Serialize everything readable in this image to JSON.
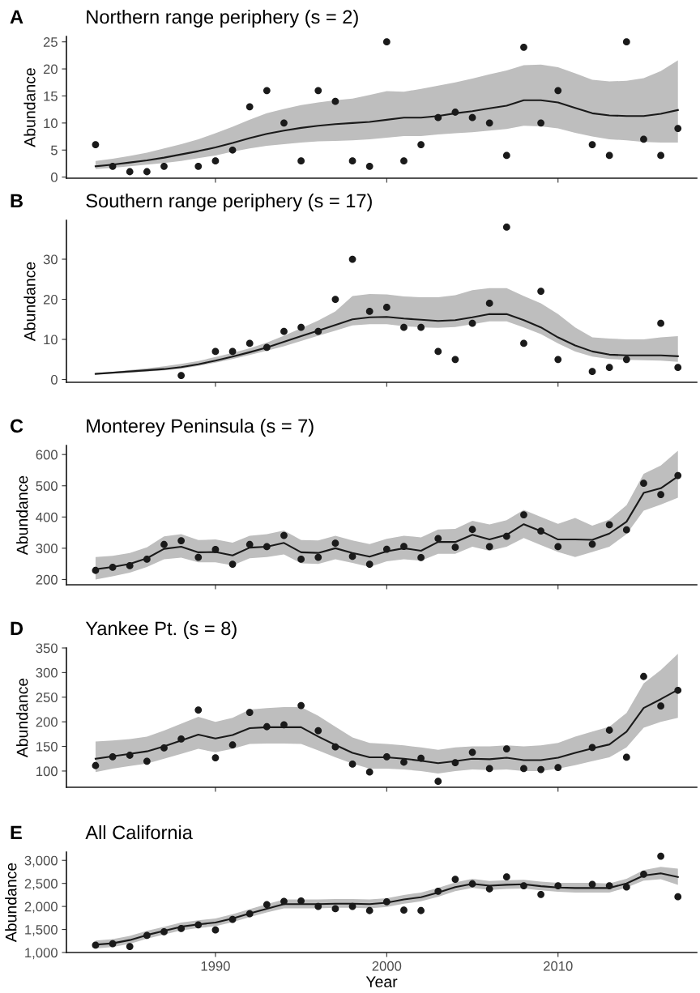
{
  "chart_data": [
    {
      "type": "scatter",
      "title": "Northern range periphery (s = 2)",
      "ylabel": "Abundance",
      "annotations": [
        "A"
      ],
      "marker": "circle",
      "tick_labels": "y",
      "xlim": [
        1981.3,
        2018.1
      ],
      "xticks": [
        {
          "value": 1990,
          "label": null
        },
        {
          "value": 2000,
          "label": null
        },
        {
          "value": 2010,
          "label": null
        }
      ],
      "ylim": [
        -0.2,
        26
      ],
      "yticks": [
        0,
        5,
        10,
        15,
        20,
        25
      ],
      "series": [
        {
          "type": "line",
          "color": "#1a1a1a",
          "marker": "none",
          "x": [
            1983,
            1984,
            1985,
            1986,
            1987,
            1988,
            1989,
            1990,
            1991,
            1992,
            1993,
            1994,
            1995,
            1996,
            1997,
            1998,
            1999,
            2000,
            2001,
            2002,
            2003,
            2004,
            2005,
            2006,
            2007,
            2008,
            2009,
            2010,
            2011,
            2012,
            2013,
            2014,
            2015,
            2016,
            2017
          ],
          "values": [
            2.0,
            2.3,
            2.7,
            3.1,
            3.6,
            4.2,
            4.8,
            5.5,
            6.3,
            7.2,
            8.0,
            8.6,
            9.1,
            9.5,
            9.8,
            10.0,
            10.2,
            10.6,
            11.0,
            11.0,
            11.3,
            11.8,
            12.2,
            12.7,
            13.2,
            14.2,
            14.2,
            13.8,
            12.8,
            11.8,
            11.4,
            11.3,
            11.3,
            11.7,
            12.4
          ],
          "lower": [
            1.5,
            1.7,
            2.0,
            2.3,
            2.6,
            3.0,
            3.5,
            4.0,
            4.7,
            5.3,
            5.8,
            6.1,
            6.4,
            6.6,
            6.7,
            6.8,
            7.0,
            7.3,
            7.6,
            7.6,
            7.9,
            8.1,
            8.3,
            8.6,
            8.9,
            9.5,
            9.4,
            9.0,
            8.2,
            7.5,
            7.0,
            6.8,
            6.5,
            6.4,
            6.4
          ],
          "upper": [
            3.0,
            3.4,
            3.9,
            4.5,
            5.3,
            6.1,
            7.0,
            8.1,
            9.3,
            10.6,
            11.8,
            12.6,
            13.3,
            13.8,
            14.2,
            14.5,
            15.2,
            15.9,
            15.8,
            16.3,
            16.9,
            17.5,
            18.2,
            19.0,
            19.7,
            20.7,
            20.8,
            20.3,
            19.2,
            18.0,
            17.7,
            17.8,
            18.3,
            19.6,
            21.6
          ]
        },
        {
          "color": "#1a1a1a",
          "x": [
            1983,
            1984,
            1985,
            1986,
            1987,
            1989,
            1990,
            1991,
            1992,
            1993,
            1994,
            1995,
            1996,
            1997,
            1998,
            1999,
            2000,
            2001,
            2002,
            2003,
            2004,
            2005,
            2006,
            2007,
            2008,
            2009,
            2010,
            2012,
            2013,
            2014,
            2015,
            2016,
            2017
          ],
          "values": [
            6,
            2,
            1,
            1,
            2,
            2,
            3,
            5,
            13,
            16,
            10,
            3,
            16,
            14,
            3,
            2,
            25,
            3,
            6,
            11,
            12,
            11,
            10,
            4,
            24,
            10,
            16,
            6,
            4,
            25,
            7,
            4,
            9
          ]
        }
      ]
    },
    {
      "type": "scatter",
      "title": "Southern range periphery (s = 17)",
      "ylabel": "Abundance",
      "annotations": [
        "B"
      ],
      "marker": "circle",
      "tick_labels": "y",
      "xlim": [
        1981.3,
        2018.1
      ],
      "xticks": [
        {
          "value": 1990,
          "label": null
        },
        {
          "value": 2000,
          "label": null
        },
        {
          "value": 2010,
          "label": null
        }
      ],
      "ylim": [
        -0.7,
        39.7
      ],
      "yticks": [
        0,
        10,
        20,
        30
      ],
      "series": [
        {
          "type": "line",
          "color": "#1a1a1a",
          "marker": "none",
          "x": [
            1983,
            1984,
            1985,
            1986,
            1987,
            1988,
            1989,
            1990,
            1991,
            1992,
            1993,
            1994,
            1995,
            1996,
            1997,
            1998,
            1999,
            2000,
            2001,
            2002,
            2003,
            2004,
            2005,
            2006,
            2007,
            2008,
            2009,
            2010,
            2011,
            2012,
            2013,
            2014,
            2015,
            2016,
            2017
          ],
          "values": [
            1.4,
            1.7,
            2.0,
            2.3,
            2.6,
            3.1,
            3.8,
            4.7,
            5.7,
            6.8,
            8.0,
            9.4,
            10.8,
            12.2,
            13.6,
            15.0,
            15.5,
            15.6,
            15.2,
            14.9,
            14.6,
            14.8,
            15.5,
            16.3,
            16.3,
            14.8,
            13.0,
            10.5,
            8.5,
            7.0,
            6.2,
            6.0,
            6.0,
            6.0,
            5.8
          ],
          "lower": [
            1.2,
            1.5,
            1.7,
            2.0,
            2.3,
            2.7,
            3.4,
            4.2,
            5.1,
            6.1,
            7.2,
            8.3,
            9.6,
            10.9,
            12.2,
            13.5,
            13.8,
            13.8,
            13.3,
            13.0,
            12.9,
            13.1,
            13.8,
            14.5,
            14.5,
            13.0,
            11.3,
            9.0,
            7.0,
            5.7,
            5.1,
            4.9,
            4.8,
            4.7,
            4.4
          ],
          "upper": [
            1.6,
            1.9,
            2.4,
            2.8,
            3.3,
            3.9,
            4.6,
            5.6,
            6.6,
            7.8,
            9.2,
            10.9,
            12.8,
            14.7,
            17.0,
            20.8,
            21.3,
            21.2,
            20.7,
            20.5,
            20.5,
            21.0,
            22.3,
            22.8,
            22.8,
            20.8,
            19.0,
            16.3,
            13.0,
            10.5,
            10.2,
            10.0,
            10.0,
            10.5,
            10.8
          ]
        },
        {
          "color": "#1a1a1a",
          "x": [
            1988,
            1990,
            1991,
            1992,
            1993,
            1994,
            1995,
            1996,
            1997,
            1998,
            1999,
            2000,
            2001,
            2002,
            2003,
            2004,
            2005,
            2006,
            2007,
            2008,
            2009,
            2010,
            2012,
            2013,
            2014,
            2016,
            2017
          ],
          "values": [
            1,
            7,
            7,
            9,
            8,
            12,
            13,
            12,
            20,
            30,
            17,
            18,
            13,
            13,
            7,
            5,
            14,
            19,
            38,
            9,
            22,
            5,
            2,
            3,
            5,
            14,
            3
          ]
        }
      ]
    },
    {
      "type": "scatter",
      "title": "Monterey Peninsula (s = 7)",
      "ylabel": "Abundance",
      "annotations": [
        "C"
      ],
      "marker": "circle",
      "tick_labels": "y",
      "xlim": [
        1981.3,
        2018.1
      ],
      "xticks": [
        {
          "value": 1990,
          "label": null
        },
        {
          "value": 2000,
          "label": null
        },
        {
          "value": 2010,
          "label": null
        }
      ],
      "ylim": [
        183,
        629
      ],
      "yticks": [
        200,
        300,
        400,
        500,
        600
      ],
      "series": [
        {
          "type": "line",
          "color": "#1a1a1a",
          "marker": "none",
          "x": [
            1983,
            1984,
            1985,
            1986,
            1987,
            1988,
            1989,
            1990,
            1991,
            1992,
            1993,
            1994,
            1995,
            1996,
            1997,
            1998,
            1999,
            2000,
            2001,
            2002,
            2003,
            2004,
            2005,
            2006,
            2007,
            2008,
            2009,
            2010,
            2011,
            2012,
            2013,
            2014,
            2015,
            2016,
            2017
          ],
          "values": [
            233,
            240,
            250,
            268,
            298,
            305,
            287,
            288,
            277,
            302,
            305,
            317,
            287,
            285,
            300,
            285,
            273,
            290,
            300,
            292,
            320,
            320,
            343,
            328,
            343,
            377,
            355,
            328,
            328,
            327,
            347,
            385,
            477,
            492,
            530
          ],
          "lower": [
            200,
            210,
            222,
            240,
            265,
            270,
            255,
            255,
            245,
            268,
            272,
            280,
            252,
            250,
            265,
            253,
            240,
            258,
            265,
            260,
            282,
            282,
            305,
            292,
            305,
            333,
            310,
            288,
            272,
            288,
            305,
            345,
            420,
            440,
            462
          ],
          "upper": [
            272,
            276,
            285,
            303,
            338,
            345,
            326,
            328,
            318,
            340,
            345,
            357,
            326,
            325,
            340,
            325,
            313,
            330,
            340,
            335,
            360,
            362,
            388,
            376,
            390,
            423,
            400,
            378,
            397,
            372,
            392,
            438,
            538,
            565,
            612
          ]
        },
        {
          "color": "#1a1a1a",
          "x": [
            1983,
            1984,
            1985,
            1986,
            1987,
            1988,
            1989,
            1990,
            1991,
            1992,
            1993,
            1994,
            1995,
            1996,
            1997,
            1998,
            1999,
            2000,
            2001,
            2002,
            2003,
            2004,
            2005,
            2006,
            2007,
            2008,
            2009,
            2010,
            2012,
            2013,
            2014,
            2015,
            2016,
            2017
          ],
          "values": [
            229,
            239,
            244,
            265,
            312,
            324,
            271,
            296,
            249,
            312,
            305,
            341,
            265,
            271,
            316,
            274,
            249,
            297,
            306,
            270,
            331,
            303,
            360,
            305,
            338,
            407,
            355,
            305,
            313,
            375,
            359,
            508,
            472,
            533
          ]
        }
      ]
    },
    {
      "type": "scatter",
      "title": "Yankee Pt. (s = 8)",
      "ylabel": "Abundance",
      "annotations": [
        "D"
      ],
      "marker": "circle",
      "tick_labels": "y",
      "xlim": [
        1981.3,
        2018.1
      ],
      "xticks": [
        {
          "value": 1990,
          "label": null
        },
        {
          "value": 2000,
          "label": null
        },
        {
          "value": 2010,
          "label": null
        }
      ],
      "ylim": [
        67,
        350
      ],
      "yticks": [
        100,
        150,
        200,
        250,
        300,
        350
      ],
      "series": [
        {
          "type": "line",
          "color": "#1a1a1a",
          "marker": "none",
          "x": [
            1983,
            1984,
            1985,
            1986,
            1987,
            1988,
            1989,
            1990,
            1991,
            1992,
            1993,
            1994,
            1995,
            1996,
            1997,
            1998,
            1999,
            2000,
            2001,
            2002,
            2003,
            2004,
            2005,
            2006,
            2007,
            2008,
            2009,
            2010,
            2011,
            2012,
            2013,
            2014,
            2015,
            2016,
            2017
          ],
          "values": [
            125,
            130,
            135,
            140,
            150,
            162,
            174,
            166,
            173,
            187,
            189,
            189,
            189,
            170,
            153,
            137,
            128,
            128,
            125,
            121,
            116,
            120,
            125,
            124,
            127,
            122,
            122,
            127,
            137,
            146,
            154,
            180,
            228,
            246,
            265
          ],
          "lower": [
            98,
            105,
            110,
            115,
            125,
            135,
            145,
            138,
            145,
            155,
            156,
            156,
            155,
            142,
            128,
            115,
            105,
            105,
            103,
            100,
            95,
            100,
            103,
            102,
            103,
            100,
            100,
            105,
            112,
            120,
            128,
            148,
            188,
            200,
            208
          ],
          "upper": [
            160,
            162,
            165,
            170,
            182,
            196,
            210,
            200,
            208,
            225,
            228,
            230,
            230,
            212,
            190,
            168,
            157,
            155,
            152,
            148,
            143,
            148,
            150,
            150,
            152,
            150,
            152,
            157,
            170,
            180,
            190,
            218,
            278,
            305,
            338
          ]
        },
        {
          "color": "#1a1a1a",
          "x": [
            1983,
            1984,
            1985,
            1986,
            1987,
            1988,
            1989,
            1990,
            1991,
            1992,
            1993,
            1994,
            1995,
            1996,
            1997,
            1998,
            1999,
            2000,
            2001,
            2002,
            2003,
            2004,
            2005,
            2006,
            2007,
            2008,
            2009,
            2010,
            2012,
            2013,
            2014,
            2015,
            2016,
            2017
          ],
          "values": [
            111,
            129,
            132,
            120,
            147,
            165,
            224,
            127,
            153,
            219,
            190,
            194,
            233,
            182,
            149,
            114,
            98,
            129,
            118,
            126,
            79,
            117,
            138,
            105,
            145,
            105,
            103,
            107,
            148,
            183,
            128,
            292,
            232,
            264
          ]
        }
      ]
    },
    {
      "type": "scatter",
      "title": "All California",
      "ylabel": "Abundance",
      "xlabel": "Year",
      "annotations": [
        "E"
      ],
      "marker": "circle",
      "xlim": [
        1981.3,
        2018.1
      ],
      "xticks": [
        1990,
        2000,
        2010
      ],
      "ylim": [
        1000,
        3180
      ],
      "yticks": [
        {
          "value": 1000,
          "label": "1,000"
        },
        {
          "value": 1500,
          "label": "1,500"
        },
        {
          "value": 2000,
          "label": "2,000"
        },
        {
          "value": 2500,
          "label": "2,500"
        },
        {
          "value": 3000,
          "label": "3,000"
        }
      ],
      "series": [
        {
          "type": "line",
          "color": "#1a1a1a",
          "marker": "none",
          "x": [
            1983,
            1984,
            1985,
            1986,
            1987,
            1988,
            1989,
            1990,
            1991,
            1992,
            1993,
            1994,
            1995,
            1996,
            1997,
            1998,
            1999,
            2000,
            2001,
            2002,
            2003,
            2004,
            2005,
            2006,
            2007,
            2008,
            2009,
            2010,
            2011,
            2012,
            2013,
            2014,
            2015,
            2016,
            2017
          ],
          "values": [
            1170,
            1200,
            1270,
            1380,
            1470,
            1560,
            1610,
            1650,
            1740,
            1850,
            1950,
            2050,
            2050,
            2050,
            2060,
            2060,
            2050,
            2080,
            2150,
            2200,
            2300,
            2420,
            2490,
            2450,
            2470,
            2480,
            2440,
            2410,
            2400,
            2400,
            2400,
            2500,
            2670,
            2720,
            2640
          ],
          "lower": [
            1090,
            1120,
            1190,
            1300,
            1390,
            1480,
            1530,
            1570,
            1660,
            1770,
            1870,
            1960,
            1960,
            1960,
            1970,
            1970,
            1960,
            1990,
            2060,
            2110,
            2210,
            2330,
            2400,
            2360,
            2380,
            2390,
            2350,
            2320,
            2300,
            2300,
            2300,
            2410,
            2560,
            2590,
            2470
          ],
          "upper": [
            1260,
            1290,
            1360,
            1470,
            1560,
            1650,
            1700,
            1740,
            1830,
            1940,
            2050,
            2150,
            2150,
            2150,
            2160,
            2160,
            2150,
            2180,
            2250,
            2300,
            2400,
            2520,
            2600,
            2550,
            2570,
            2580,
            2540,
            2510,
            2510,
            2510,
            2500,
            2600,
            2790,
            2860,
            2820
          ]
        },
        {
          "color": "#1a1a1a",
          "x": [
            1983,
            1984,
            1985,
            1986,
            1987,
            1988,
            1989,
            1990,
            1991,
            1992,
            1993,
            1994,
            1995,
            1996,
            1997,
            1998,
            1999,
            2000,
            2001,
            2002,
            2003,
            2004,
            2005,
            2006,
            2007,
            2008,
            2009,
            2010,
            2012,
            2013,
            2014,
            2015,
            2016,
            2017
          ],
          "values": [
            1160,
            1190,
            1130,
            1370,
            1450,
            1520,
            1600,
            1490,
            1720,
            1840,
            2040,
            2110,
            2120,
            2000,
            1950,
            2000,
            1910,
            2100,
            1920,
            1910,
            2330,
            2590,
            2490,
            2380,
            2640,
            2450,
            2260,
            2450,
            2480,
            2450,
            2420,
            2700,
            3090,
            2210
          ]
        }
      ]
    }
  ]
}
